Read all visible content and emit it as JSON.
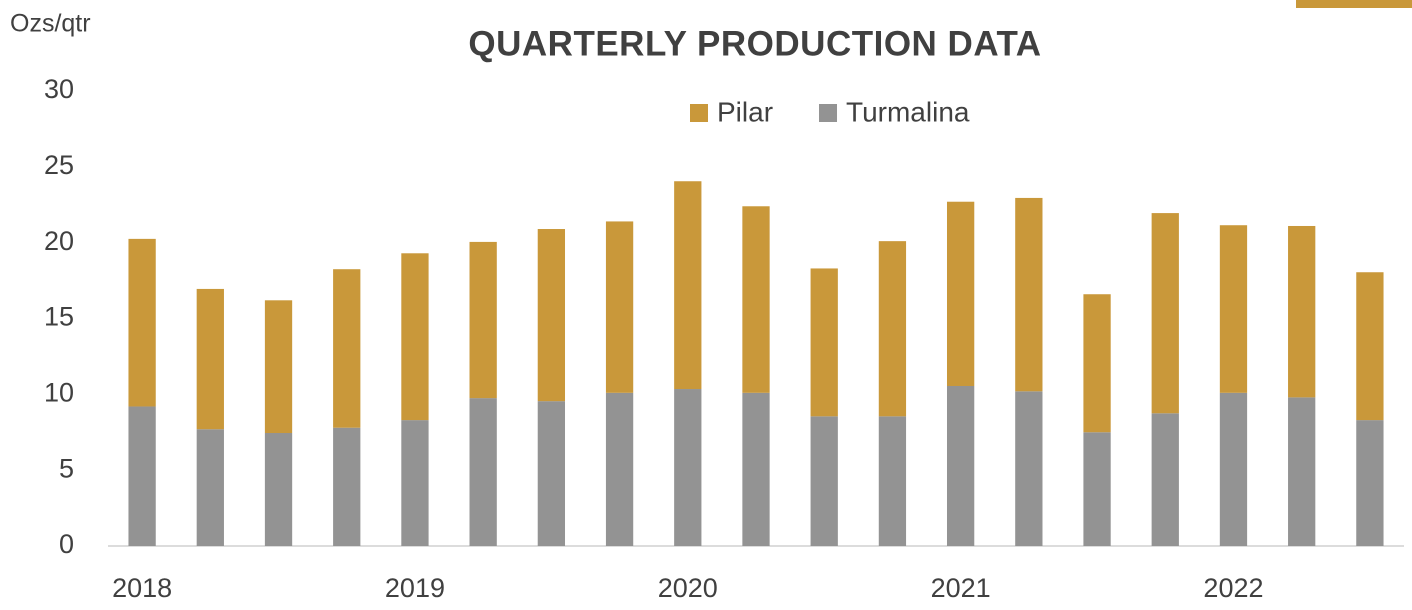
{
  "chart_data": {
    "type": "stacked_bar",
    "title": "QUARTERLY PRODUCTION DATA",
    "y_label": "Ozs/qtr",
    "categories": [
      "2018",
      null,
      null,
      null,
      "2019",
      null,
      null,
      null,
      "2020",
      null,
      null,
      null,
      "2021",
      null,
      null,
      null,
      "2022",
      null,
      null
    ],
    "series": [
      {
        "name": "Pilar",
        "color": "#c9983a",
        "values": [
          11.05,
          9.25,
          8.75,
          10.45,
          11.0,
          10.3,
          11.35,
          11.3,
          13.7,
          12.3,
          9.75,
          11.55,
          12.15,
          12.75,
          9.1,
          13.2,
          11.05,
          11.3,
          9.75
        ]
      },
      {
        "name": "Turmalina",
        "color": "#939393",
        "values": [
          9.2,
          7.7,
          7.45,
          7.8,
          8.3,
          9.75,
          9.55,
          10.1,
          10.35,
          10.1,
          8.55,
          8.55,
          10.55,
          10.2,
          7.5,
          8.75,
          10.1,
          9.8,
          8.3
        ]
      }
    ],
    "ylim": [
      0,
      30
    ],
    "yticks": [
      0,
      5,
      10,
      15,
      20,
      25,
      30
    ],
    "grid": false,
    "legend": "top"
  }
}
